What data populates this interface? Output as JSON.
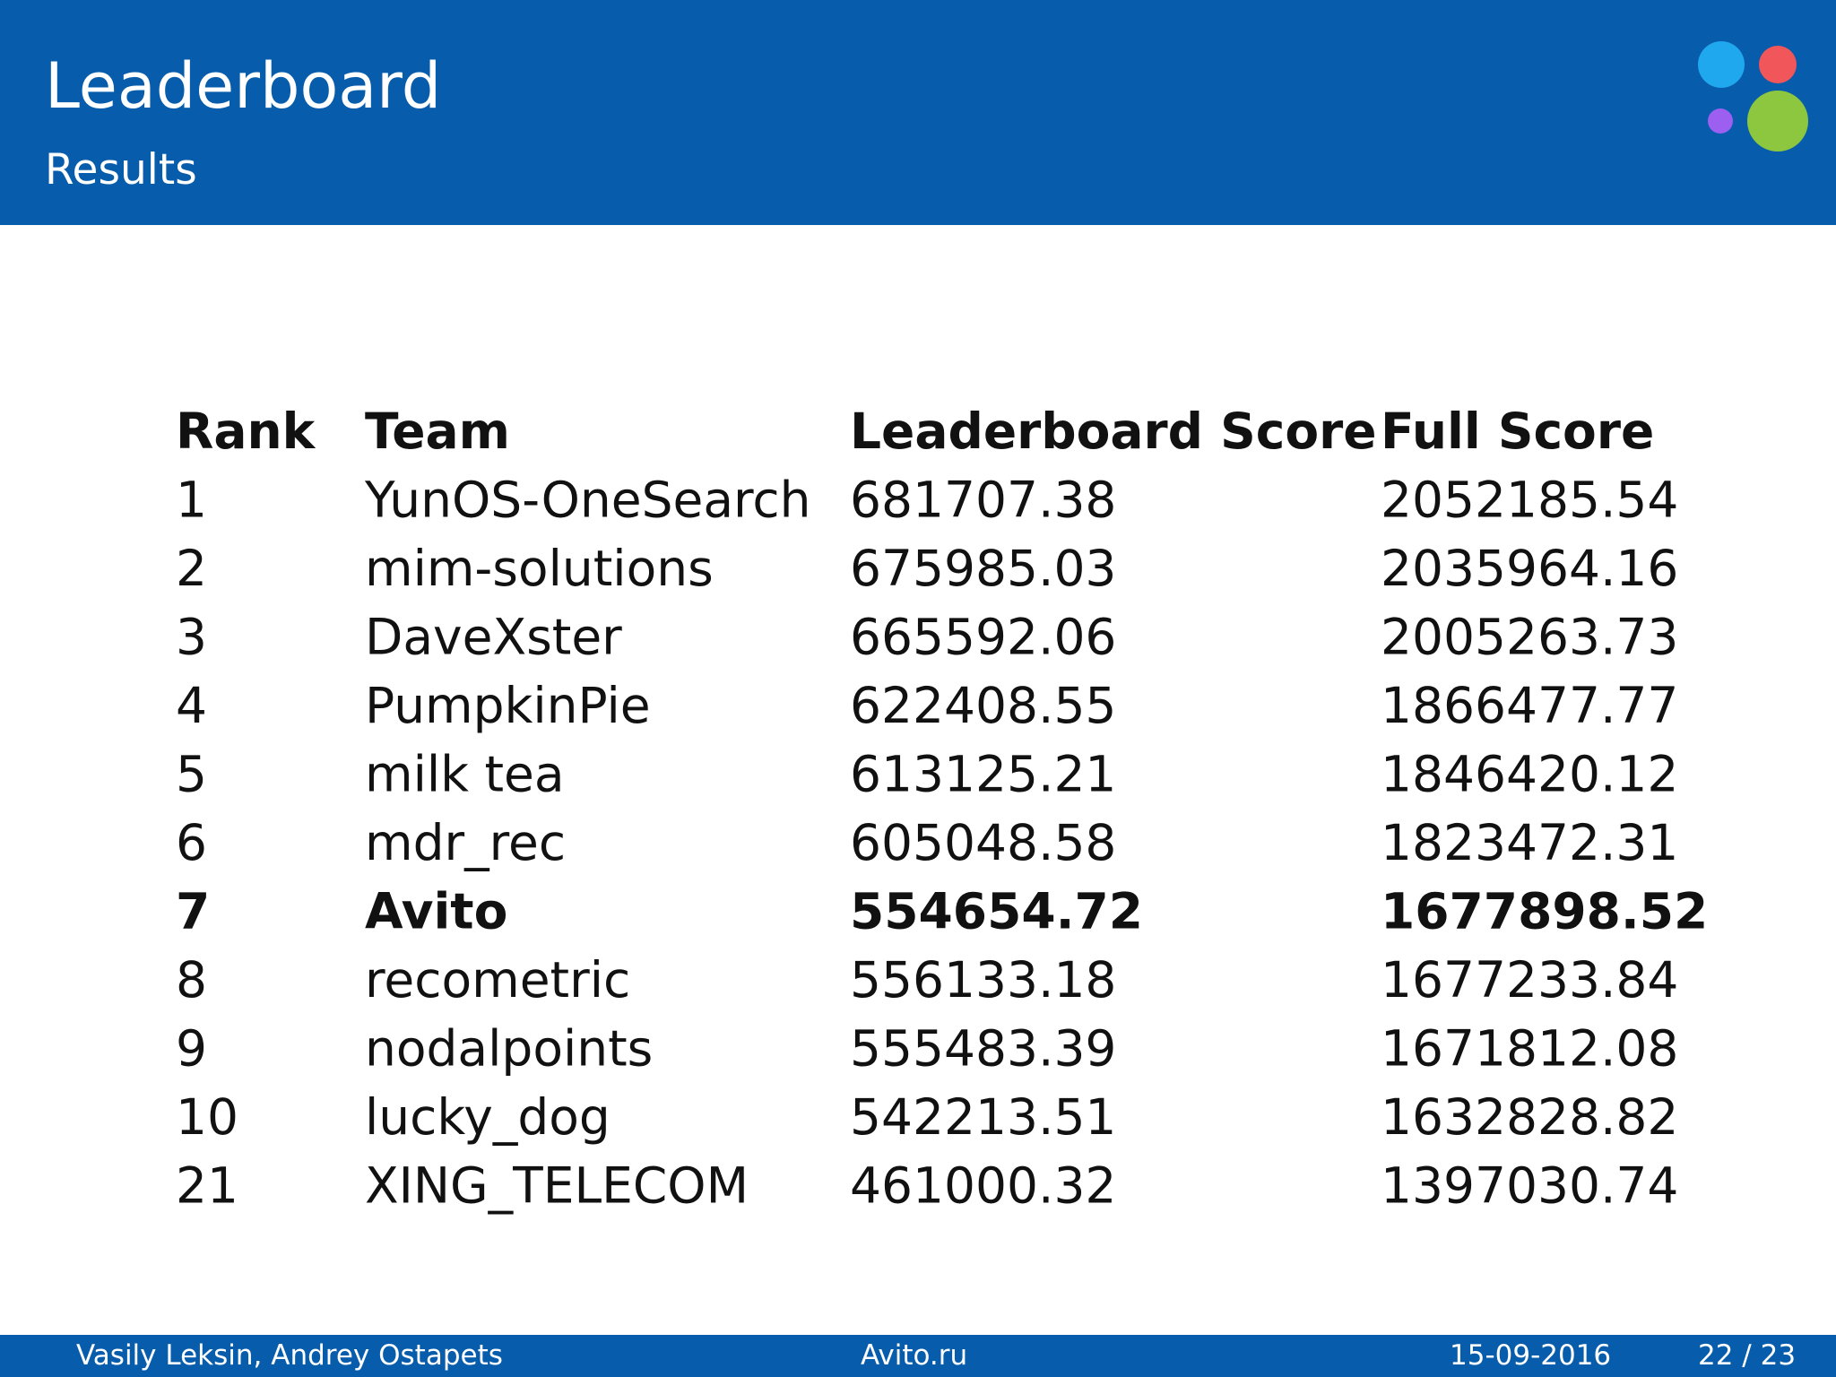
{
  "header": {
    "title": "Leaderboard",
    "subtitle": "Results"
  },
  "table": {
    "columns": [
      "Rank",
      "Team",
      "Leaderboard Score",
      "Full Score"
    ],
    "rows": [
      [
        "1",
        "YunOS-OneSearch",
        "681707.38",
        "2052185.54"
      ],
      [
        "2",
        "mim-solutions",
        "675985.03",
        "2035964.16"
      ],
      [
        "3",
        "DaveXster",
        "665592.06",
        "2005263.73"
      ],
      [
        "4",
        "PumpkinPie",
        "622408.55",
        "1866477.77"
      ],
      [
        "5",
        "milk tea",
        "613125.21",
        "1846420.12"
      ],
      [
        "6",
        "mdr_rec",
        "605048.58",
        "1823472.31"
      ],
      [
        "7",
        "Avito",
        "554654.72",
        "1677898.52"
      ],
      [
        "8",
        "recometric",
        "556133.18",
        "1677233.84"
      ],
      [
        "9",
        "nodalpoints",
        "555483.39",
        "1671812.08"
      ],
      [
        "10",
        "lucky_dog",
        "542213.51",
        "1632828.82"
      ],
      [
        "21",
        "XING_TELECOM",
        "461000.32",
        "1397030.74"
      ]
    ]
  },
  "footer": {
    "authors": "Vasily Leksin, Andrey Ostapets",
    "site": "Avito.ru",
    "date": "15-09-2016",
    "page": "22 / 23"
  }
}
